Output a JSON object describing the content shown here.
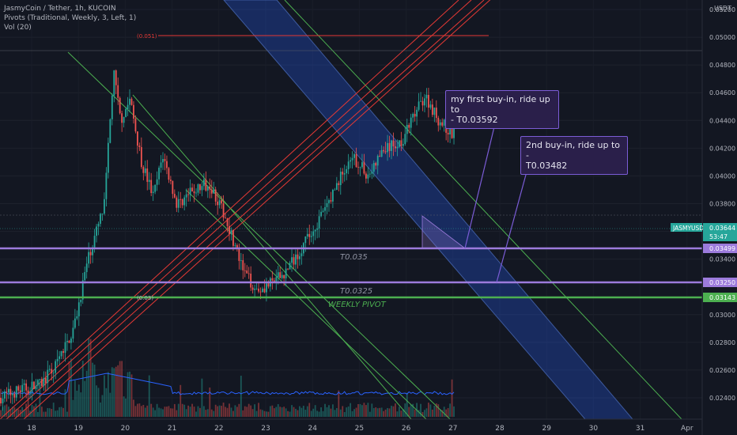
{
  "legend": {
    "symbol": "JasmyCoin / Tether, 1h, KUCOIN",
    "pivots": "Pivots (Traditional, Weekly, 3, Left, 1)",
    "vol": "Vol (20)"
  },
  "currency": "USDT",
  "chart_data": {
    "type": "candlestick",
    "symbol": "JASMYUSDT",
    "timeframe": "1h",
    "exchange": "KUCOIN",
    "yrange": [
      0.0228,
      0.0524
    ],
    "y_ticks": [
      "0.05200",
      "0.05000",
      "0.04800",
      "0.04600",
      "0.04400",
      "0.04200",
      "0.04000",
      "0.03800",
      "0.03600",
      "0.03400",
      "0.03000",
      "0.02800",
      "0.02600",
      "0.02400"
    ],
    "x_ticks": [
      "18",
      "19",
      "20",
      "21",
      "22",
      "23",
      "24",
      "25",
      "26",
      "27",
      "28",
      "29",
      "30",
      "31",
      "Apr"
    ],
    "last_price": "0.03644",
    "countdown": "53:47",
    "level_badges": [
      "0.03499",
      "0.03250",
      "0.03143"
    ],
    "levels": [
      {
        "value": 0.03499,
        "label": "T0.035",
        "color": "#9c7bdc"
      },
      {
        "value": 0.0325,
        "label": "T0.0325",
        "color": "#9c7bdc"
      },
      {
        "value": 0.03143,
        "label": "WEEKLY PIVOT",
        "color": "#4caf50"
      }
    ],
    "pivot_labels": [
      "(0.051)",
      "(0.03)"
    ],
    "colors": {
      "up": "#26a69a",
      "down": "#ef5350"
    }
  },
  "annotations": {
    "first": "my first buy-in, ride up to\n- T0.03592",
    "second": "2nd buy-in, ride up to -\nT0.03482"
  }
}
